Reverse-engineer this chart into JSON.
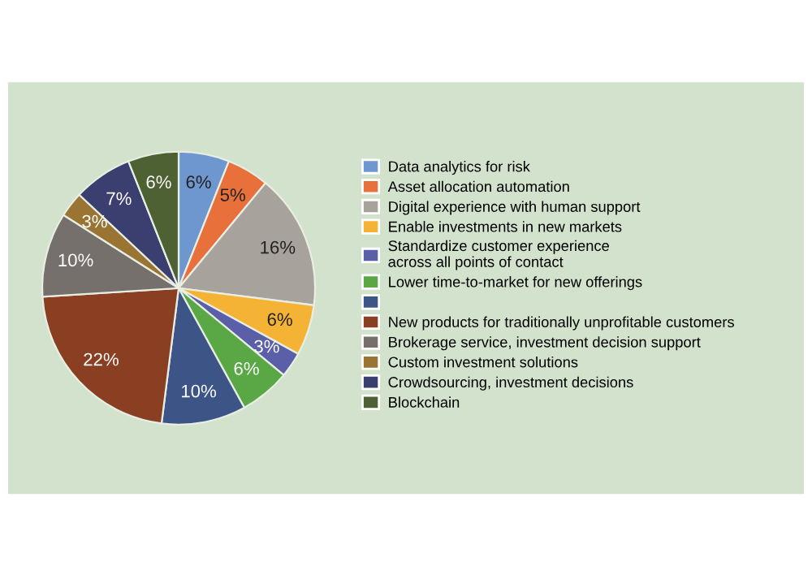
{
  "chart_data": {
    "type": "pie",
    "categories": [
      "Data analytics for risk",
      "Asset allocation automation",
      "Digital experience with human support",
      "Enable investments in new markets",
      "Standardize customer experience\nacross all points of contact",
      "Lower time-to-market for new offerings",
      null,
      "New products for traditionally unprofitable customers",
      "Brokerage service, investment decision support",
      "Custom investment solutions",
      "Crowdsourcing, investment decisions",
      "Blockchain"
    ],
    "values": [
      6,
      5,
      16,
      6,
      3,
      6,
      10,
      22,
      10,
      3,
      7,
      6
    ],
    "colors": [
      "#6f97cf",
      "#e8703a",
      "#a8a29c",
      "#f5b335",
      "#5a5fa8",
      "#5aa845",
      "#3d5487",
      "#8b3f22",
      "#76706c",
      "#9a7432",
      "#3b3f70",
      "#4e6132"
    ],
    "value_labels": [
      "6%",
      "5%",
      "16%",
      "6%",
      "3%",
      "6%",
      "10%",
      "22%",
      "10%",
      "3%",
      "7%",
      "6%"
    ],
    "legend": "right"
  }
}
